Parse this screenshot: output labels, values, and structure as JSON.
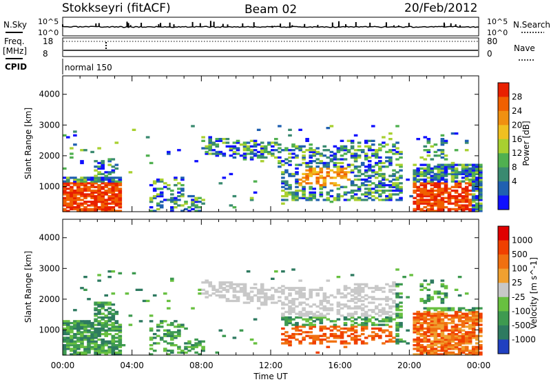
{
  "header": {
    "station": "Stokkseyri (fitACF)",
    "beam": "Beam 02",
    "date": "20/Feb/2012"
  },
  "nsky_panel": {
    "left_label": "N.Sky",
    "right_label": "N.Search",
    "ticks_top": "10^5",
    "ticks_bottom": "10^0"
  },
  "freq_panel": {
    "left_label_1": "Freq.",
    "left_label_2": "[MHz]",
    "left_ticks": [
      "18",
      "8"
    ],
    "right_label": "Nave",
    "right_ticks": [
      "80",
      "0"
    ]
  },
  "cpid_panel": {
    "label": "CPID",
    "mode": "normal 150"
  },
  "chart_data": [
    {
      "type": "heatmap",
      "name": "power",
      "ylabel": "Slant Range [km]",
      "yticks": [
        1000,
        2000,
        3000,
        4000
      ],
      "ylim": [
        180,
        4600
      ],
      "xlim_hours": [
        0,
        24
      ],
      "colorbar_label": "Power [dB]",
      "colorbar_ticks": [
        "28",
        "24",
        "20",
        "16",
        "12",
        "8",
        "4"
      ],
      "colors": [
        "#1010ff",
        "#2060b0",
        "#3a8a70",
        "#50b050",
        "#a8d030",
        "#f0c020",
        "#f09010",
        "#f06000",
        "#e82000"
      ]
    },
    {
      "type": "heatmap",
      "name": "velocity",
      "ylabel": "Slant Range [km]",
      "yticks": [
        1000,
        2000,
        3000,
        4000
      ],
      "ylim": [
        180,
        4600
      ],
      "xlim_hours": [
        0,
        24
      ],
      "xtick_labels": [
        "00:00",
        "04:00",
        "08:00",
        "12:00",
        "16:00",
        "20:00",
        "00:00"
      ],
      "xlabel": "Time UT",
      "colorbar_label": "Velocity [m s^-1]",
      "colorbar_ticks": [
        "1000",
        "500",
        "100",
        "25",
        "-25",
        "-100",
        "-500",
        "-1000"
      ],
      "colors": [
        "#2040c0",
        "#2e7a60",
        "#3e9a50",
        "#68c040",
        "#c8c8c8",
        "#f0a030",
        "#f07010",
        "#f04000",
        "#e00000"
      ]
    }
  ]
}
